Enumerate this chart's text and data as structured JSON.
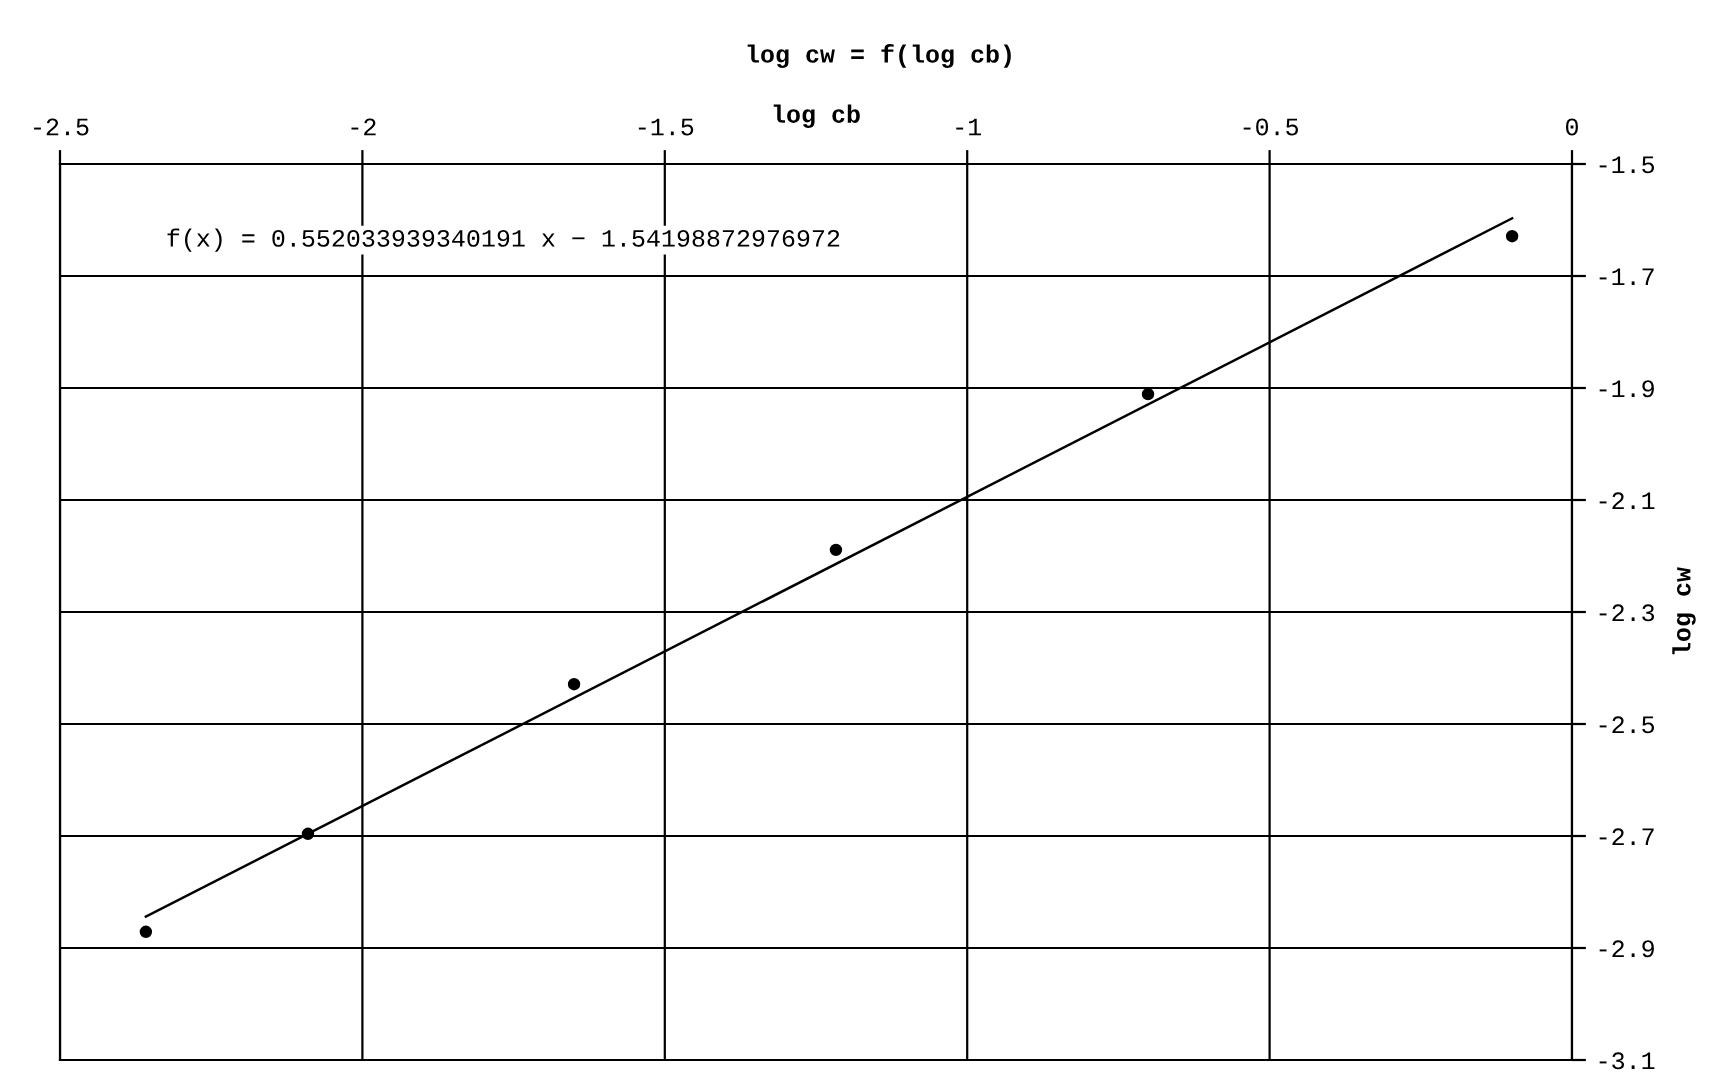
{
  "chart_data": {
    "type": "scatter",
    "title": "log cw = f(log cb)",
    "xlabel": "log cb",
    "ylabel": "log cw",
    "xlim": [
      -2.5,
      0
    ],
    "xticks": [
      -2.5,
      -2,
      -1.5,
      -1,
      -0.5,
      0
    ],
    "ylim": [
      -3.1,
      -1.5
    ],
    "yticks": [
      -3.1,
      -2.9,
      -2.7,
      -2.5,
      -2.3,
      -2.1,
      -1.9,
      -1.7,
      -1.5
    ],
    "grid": true,
    "legend": false,
    "annotations": [
      "f(x) = 0.552033939340191 x − 1.54198872976972"
    ],
    "series": [
      {
        "color": "#000000",
        "marker": "circle",
        "x": [
          -2.358,
          -2.09,
          -1.65,
          -1.217,
          -0.701,
          -0.099
        ],
        "values": [
          -2.871,
          -2.696,
          -2.429,
          -2.189,
          -1.911,
          -1.629
        ]
      },
      {
        "type": "line",
        "color": "#000000",
        "line_style": "solid",
        "x": [
          -2.358,
          -0.099
        ],
        "values": [
          -2.844,
          -1.597
        ]
      }
    ]
  }
}
